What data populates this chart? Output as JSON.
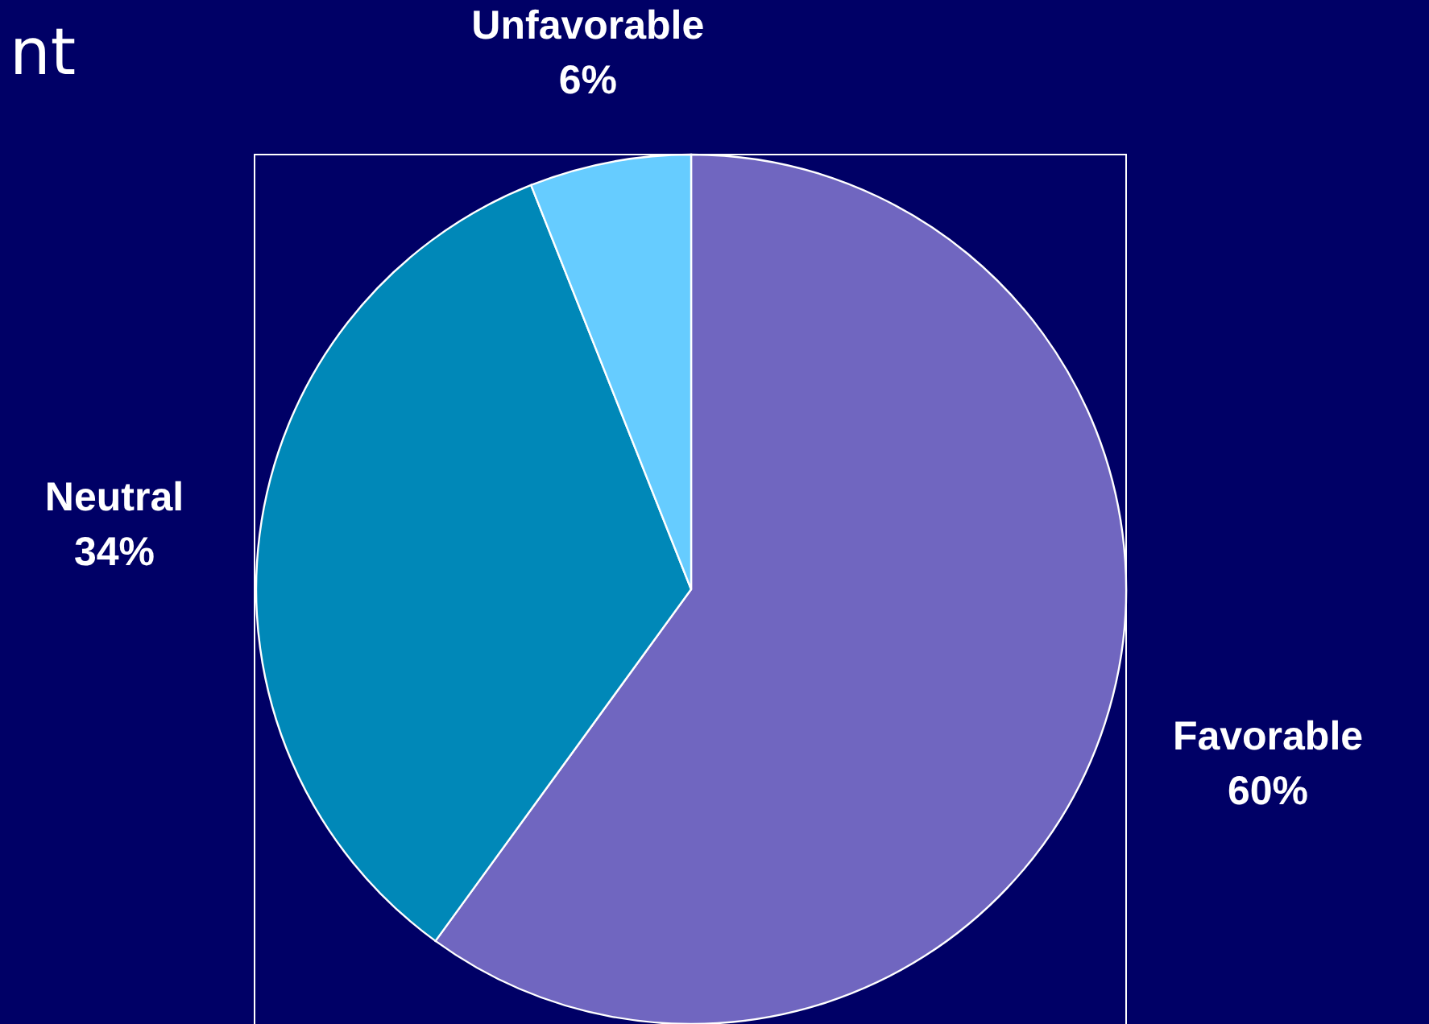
{
  "chart_data": {
    "type": "pie",
    "title": "nt",
    "categories": [
      "Favorable",
      "Neutral",
      "Unfavorable"
    ],
    "values": [
      60,
      34,
      6
    ],
    "value_labels": [
      "60%",
      "34%",
      "6%"
    ],
    "colors": [
      "#7066c0",
      "#0088b8",
      "#66ccff"
    ]
  }
}
